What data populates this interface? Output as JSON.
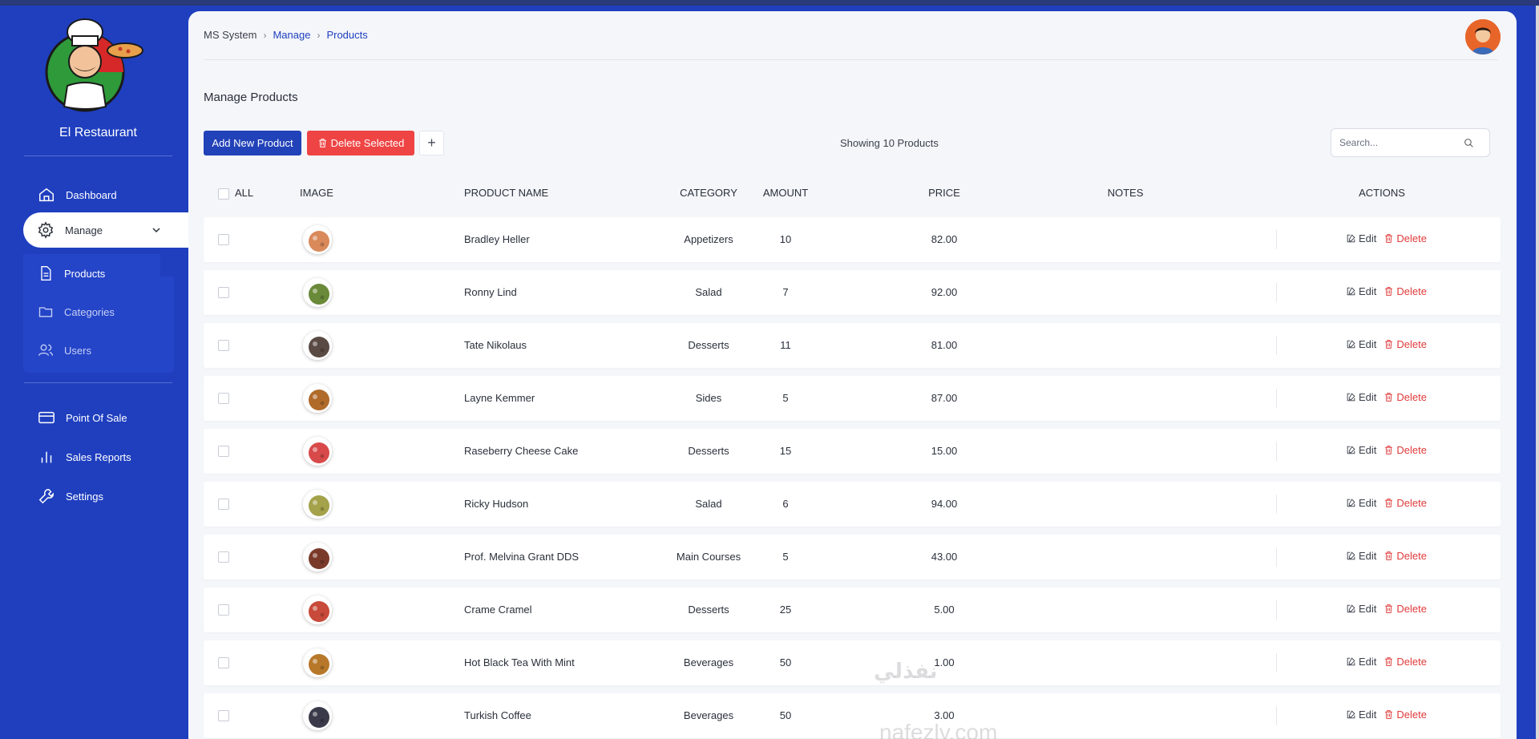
{
  "app": {
    "brand_name": "El Restaurant",
    "accent_color": "#1f3fbf",
    "danger_color": "#ef4444"
  },
  "sidebar": {
    "items": [
      {
        "label": "Dashboard",
        "icon": "home-icon"
      },
      {
        "label": "Manage",
        "icon": "gear-icon",
        "active": true
      },
      {
        "label": "Point Of Sale",
        "icon": "credit-card-icon"
      },
      {
        "label": "Sales Reports",
        "icon": "bar-chart-icon"
      },
      {
        "label": "Settings",
        "icon": "wrench-icon"
      }
    ],
    "submenu": [
      {
        "label": "Products",
        "icon": "document-icon",
        "active": true
      },
      {
        "label": "Categories",
        "icon": "folder-icon"
      },
      {
        "label": "Users",
        "icon": "users-icon"
      }
    ]
  },
  "breadcrumb": {
    "root": "MS System",
    "section": "Manage",
    "current": "Products"
  },
  "page": {
    "title": "Manage Products"
  },
  "toolbar": {
    "add_label": "Add New Product",
    "delete_label": "Delete Selected",
    "plus_label": "+",
    "showing_text": "Showing 10 Products",
    "search_placeholder": "Search..."
  },
  "table": {
    "columns": {
      "all": "ALL",
      "image": "IMAGE",
      "name": "PRODUCT NAME",
      "category": "CATEGORY",
      "amount": "AMOUNT",
      "price": "PRICE",
      "notes": "NOTES",
      "actions": "ACTIONS"
    },
    "edit_label": "Edit",
    "delete_label": "Delete",
    "rows": [
      {
        "name": "Bradley Heller",
        "category": "Appetizers",
        "amount": "10",
        "price": "82.00",
        "notes": "",
        "thumb": "#d9895a"
      },
      {
        "name": "Ronny Lind",
        "category": "Salad",
        "amount": "7",
        "price": "92.00",
        "notes": "",
        "thumb": "#6a8a3a"
      },
      {
        "name": "Tate Nikolaus",
        "category": "Desserts",
        "amount": "11",
        "price": "81.00",
        "notes": "",
        "thumb": "#5a4a44"
      },
      {
        "name": "Layne Kemmer",
        "category": "Sides",
        "amount": "5",
        "price": "87.00",
        "notes": "",
        "thumb": "#b06a2a"
      },
      {
        "name": "Raseberry Cheese Cake",
        "category": "Desserts",
        "amount": "15",
        "price": "15.00",
        "notes": "",
        "thumb": "#d84a4a"
      },
      {
        "name": "Ricky Hudson",
        "category": "Salad",
        "amount": "6",
        "price": "94.00",
        "notes": "",
        "thumb": "#a4a24a"
      },
      {
        "name": "Prof. Melvina Grant DDS",
        "category": "Main Courses",
        "amount": "5",
        "price": "43.00",
        "notes": "",
        "thumb": "#7a3a2a"
      },
      {
        "name": "Crame Cramel",
        "category": "Desserts",
        "amount": "25",
        "price": "5.00",
        "notes": "",
        "thumb": "#c84a3a"
      },
      {
        "name": "Hot Black Tea With Mint",
        "category": "Beverages",
        "amount": "50",
        "price": "1.00",
        "notes": "",
        "thumb": "#b8782a"
      },
      {
        "name": "Turkish Coffee",
        "category": "Beverages",
        "amount": "50",
        "price": "3.00",
        "notes": "",
        "thumb": "#3a3a4a"
      }
    ]
  },
  "watermark": {
    "line1": "نفذلي",
    "line2": "nafezly.com"
  }
}
